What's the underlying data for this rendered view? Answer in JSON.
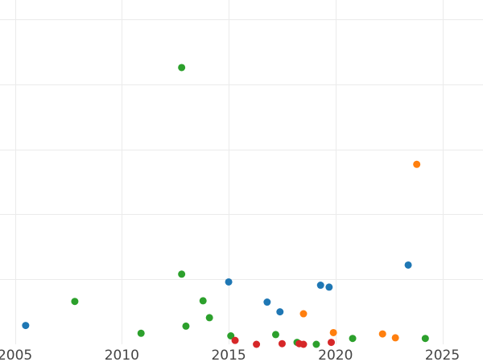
{
  "chart_data": {
    "type": "scatter",
    "title": "",
    "xlabel": "",
    "ylabel": "",
    "xlim": [
      2004.3,
      2026.9
    ],
    "ylim": [
      0,
      53
    ],
    "xticks": [
      2005,
      2010,
      2015,
      2020,
      2025
    ],
    "yticks": [
      0,
      10,
      20,
      30,
      40,
      50
    ],
    "ytick_labels_visible": false,
    "grid": true,
    "legend": "none",
    "series": [
      {
        "color": "#1f77b4",
        "points": [
          {
            "x": 2005.5,
            "y": 2.9
          },
          {
            "x": 2015.0,
            "y": 9.6
          },
          {
            "x": 2016.8,
            "y": 6.5
          },
          {
            "x": 2017.4,
            "y": 5.0
          },
          {
            "x": 2019.3,
            "y": 9.1
          },
          {
            "x": 2019.7,
            "y": 8.8
          },
          {
            "x": 2023.4,
            "y": 12.2
          }
        ]
      },
      {
        "color": "#ff7f0e",
        "points": [
          {
            "x": 2018.5,
            "y": 4.7
          },
          {
            "x": 2019.9,
            "y": 1.8
          },
          {
            "x": 2022.2,
            "y": 1.6
          },
          {
            "x": 2022.8,
            "y": 1.0
          },
          {
            "x": 2023.8,
            "y": 27.7
          }
        ]
      },
      {
        "color": "#2ca02c",
        "points": [
          {
            "x": 2007.8,
            "y": 6.6
          },
          {
            "x": 2010.9,
            "y": 1.7
          },
          {
            "x": 2012.8,
            "y": 42.6
          },
          {
            "x": 2012.8,
            "y": 10.8
          },
          {
            "x": 2013.0,
            "y": 2.8
          },
          {
            "x": 2013.8,
            "y": 6.7
          },
          {
            "x": 2014.1,
            "y": 4.1
          },
          {
            "x": 2015.1,
            "y": 1.3
          },
          {
            "x": 2017.2,
            "y": 1.5
          },
          {
            "x": 2018.2,
            "y": 0.3
          },
          {
            "x": 2019.1,
            "y": 0.0
          },
          {
            "x": 2020.8,
            "y": 0.9
          },
          {
            "x": 2024.2,
            "y": 0.9
          }
        ]
      },
      {
        "color": "#d62728",
        "points": [
          {
            "x": 2015.3,
            "y": 0.6
          },
          {
            "x": 2016.3,
            "y": 0.0
          },
          {
            "x": 2017.5,
            "y": 0.1
          },
          {
            "x": 2018.3,
            "y": 0.1
          },
          {
            "x": 2018.5,
            "y": 0.0
          },
          {
            "x": 2019.8,
            "y": 0.3
          }
        ]
      }
    ]
  }
}
